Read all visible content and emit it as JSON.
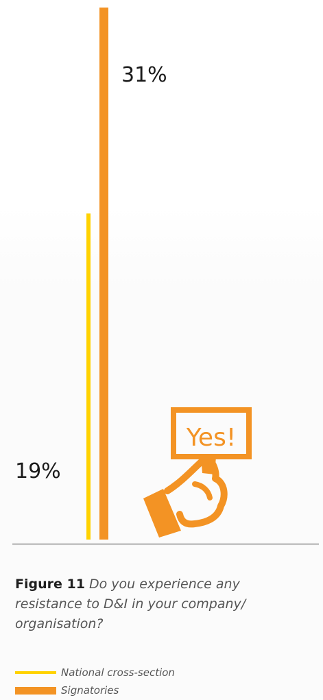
{
  "chart_data": {
    "type": "bar",
    "categories": [
      "Yes!"
    ],
    "series": [
      {
        "name": "National cross-section",
        "values": [
          19
        ],
        "color": "#ffd200"
      },
      {
        "name": "Signatories",
        "values": [
          31
        ],
        "color": "#f39324"
      }
    ],
    "value_labels": [
      "19%",
      "31%"
    ],
    "ylim": [
      0,
      31
    ],
    "grid": false,
    "legend_position": "bottom-left",
    "title": "",
    "xlabel": "",
    "ylabel": ""
  },
  "illustration": {
    "sign_text": "Yes!",
    "icon": "hand-holding-yes-sign-icon",
    "color": "#f39324"
  },
  "caption": {
    "figure_label": "Figure 11",
    "question": "Do you experience any resistance to D&I in your company/ organisation?"
  },
  "legend": {
    "items": [
      {
        "label": "National cross-section",
        "style": "thin-line",
        "color": "#ffd200"
      },
      {
        "label": "Signatories",
        "style": "thick-bar",
        "color": "#f39324"
      }
    ]
  }
}
